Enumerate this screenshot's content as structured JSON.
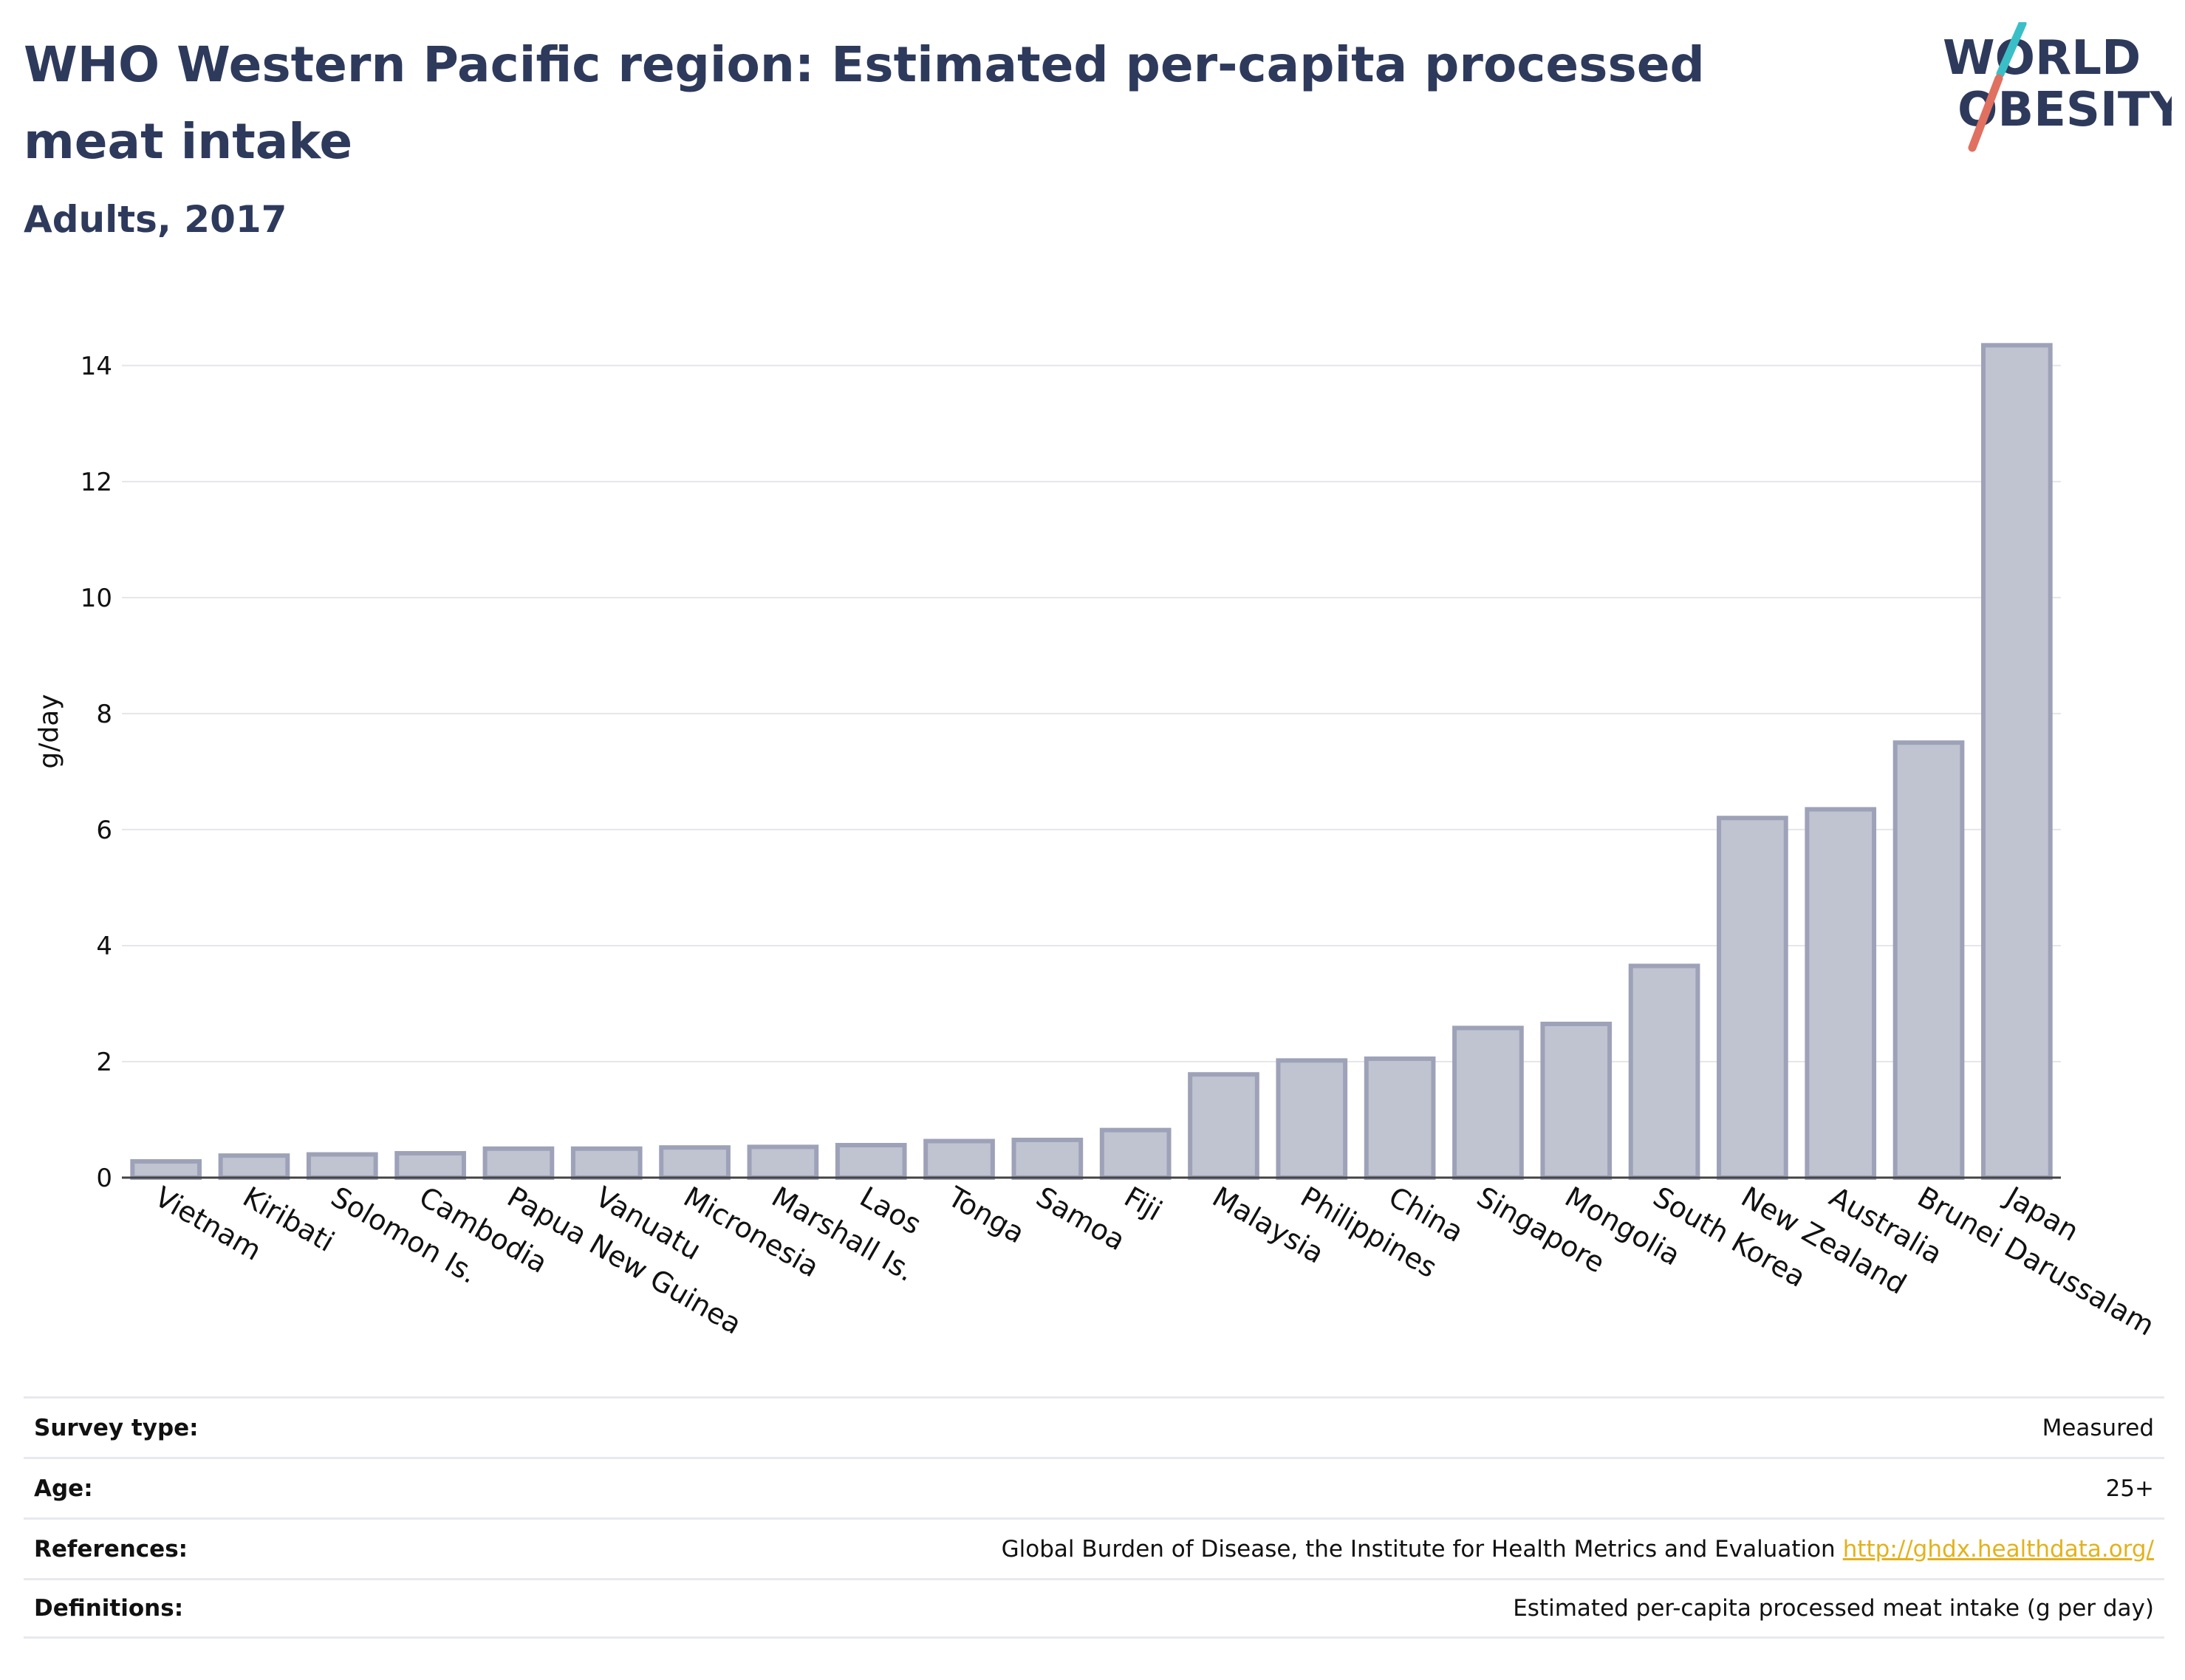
{
  "header": {
    "title": "WHO Western Pacific region: Estimated per-capita processed meat intake",
    "subtitle": "Adults, 2017"
  },
  "logo": {
    "line1": "WORLD",
    "line2": "OBESITY",
    "slash_colors": [
      "#3bbfc6",
      "#e07060"
    ],
    "text_color": "#2e3a5c"
  },
  "chart_data": {
    "type": "bar",
    "categories": [
      "Vietnam",
      "Kiribati",
      "Solomon Is.",
      "Cambodia",
      "Papua New Guinea",
      "Vanuatu",
      "Micronesia",
      "Marshall Is.",
      "Laos",
      "Tonga",
      "Samoa",
      "Fiji",
      "Malaysia",
      "Philippines",
      "China",
      "Singapore",
      "Mongolia",
      "South Korea",
      "New Zealand",
      "Australia",
      "Brunei Darussalam",
      "Japan"
    ],
    "values": [
      0.28,
      0.38,
      0.4,
      0.42,
      0.5,
      0.5,
      0.52,
      0.53,
      0.56,
      0.63,
      0.65,
      0.82,
      1.78,
      2.02,
      2.05,
      2.58,
      2.65,
      3.65,
      6.2,
      6.35,
      7.5,
      14.35
    ],
    "ylabel": "g/day",
    "xlabel": "",
    "ylim": [
      0,
      14.8
    ],
    "yticks": [
      0,
      2,
      4,
      6,
      8,
      10,
      12,
      14
    ],
    "grid": true,
    "bar_fill": "#c0c3d0",
    "bar_stroke": "#9ea2b8"
  },
  "info": {
    "rows": [
      {
        "label": "Survey type:",
        "value": "Measured",
        "link": ""
      },
      {
        "label": "Age:",
        "value": "25+",
        "link": ""
      },
      {
        "label": "References:",
        "value": "Global Burden of Disease, the Institute for Health Metrics and Evaluation",
        "link": "http://ghdx.healthdata.org/"
      },
      {
        "label": "Definitions:",
        "value": "Estimated per-capita processed meat intake (g per day)",
        "link": ""
      }
    ]
  }
}
